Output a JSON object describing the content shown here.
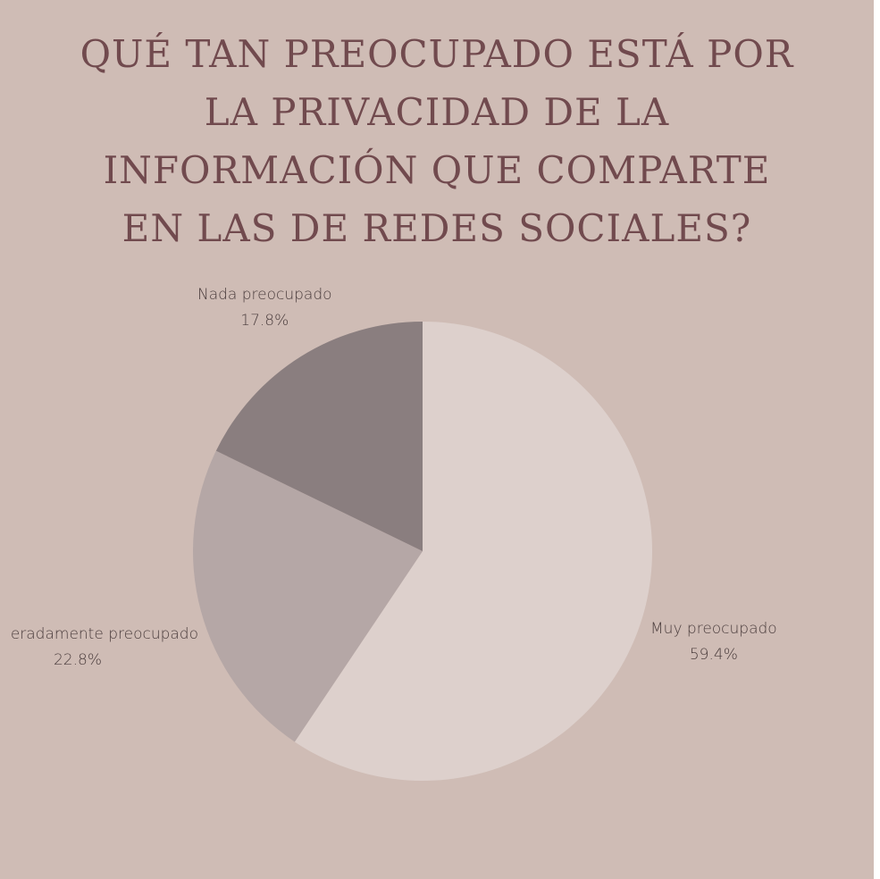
{
  "chart_data": {
    "type": "pie",
    "title_lines": [
      "QUÉ TAN PREOCUPADO ESTÁ POR",
      "LA PRIVACIDAD DE LA",
      "INFORMACIÓN QUE COMPARTE",
      "EN LAS DE REDES SOCIALES?"
    ],
    "slices": [
      {
        "label": "Muy preocupado",
        "value": 59.4,
        "value_label": "59.4%",
        "color": "#ddd0cc"
      },
      {
        "label": "eradamente preocupado",
        "value": 22.8,
        "value_label": "22.8%",
        "color": "#b5a7a6"
      },
      {
        "label": "Nada preocupado",
        "value": 17.8,
        "value_label": "17.8%",
        "color": "#8a7e7f"
      }
    ],
    "start": "12 o'clock",
    "direction": "clockwise"
  },
  "colors": {
    "background": "#cfbcb5",
    "title": "#714a4e",
    "label_text": "#4b3d3d"
  }
}
